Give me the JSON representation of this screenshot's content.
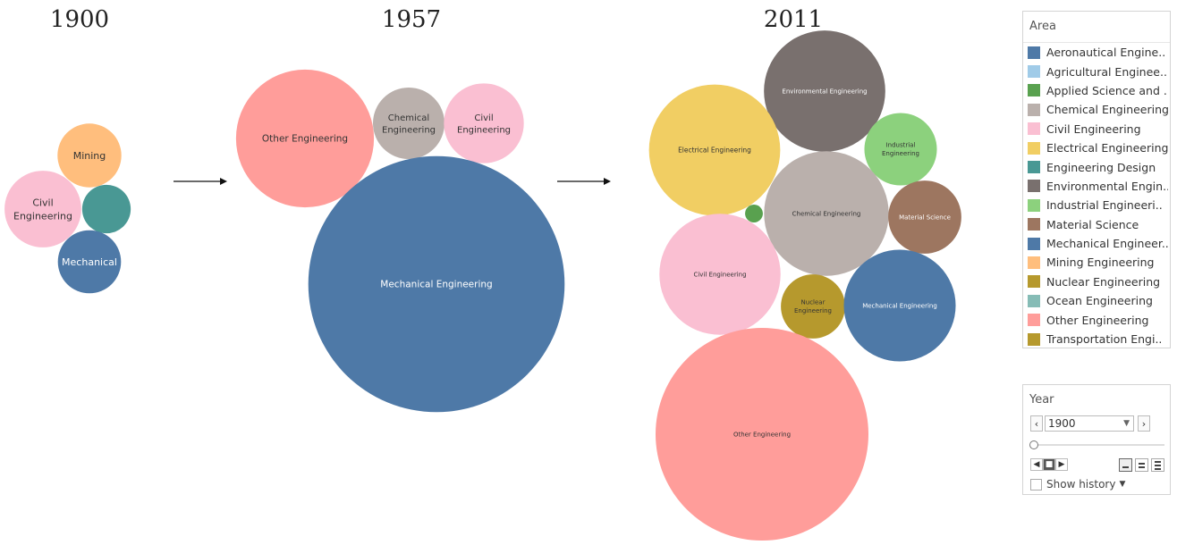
{
  "chart_data": {
    "type": "bubble",
    "frames": [
      {
        "year": "1900",
        "bubbles": [
          {
            "area": "Mining Engineering",
            "label": "Mining",
            "value": 9
          },
          {
            "area": "Civil Engineering",
            "label": "Civil Engineering",
            "value": 13
          },
          {
            "area": "Engineering Design",
            "label": "",
            "value": 5.2
          },
          {
            "area": "Mechanical Engineering",
            "label": "Mechanical",
            "value": 8.8
          }
        ]
      },
      {
        "year": "1957",
        "bubbles": [
          {
            "area": "Other Engineering",
            "label": "Other Engineering",
            "value": 42
          },
          {
            "area": "Chemical Engineering",
            "label": "Chemical Engineering",
            "value": 11.3
          },
          {
            "area": "Civil Engineering",
            "label": "Civil Engineering",
            "value": 14.1
          },
          {
            "area": "Mechanical Engineering",
            "label": "Mechanical Engineering",
            "value": 145
          }
        ]
      },
      {
        "year": "2011",
        "bubbles": [
          {
            "area": "Environmental Engineering",
            "label": "Environmental Engineering",
            "value": 32.5
          },
          {
            "area": "Electrical Engineering",
            "label": "Electrical Engineering",
            "value": 38
          },
          {
            "area": "Industrial Engineering",
            "label": "Industrial Engineering",
            "value": 11.6
          },
          {
            "area": "Chemical Engineering",
            "label": "Chemical Engineering",
            "value": 34.3
          },
          {
            "area": "Material Science",
            "label": "Material Science",
            "value": 11.8
          },
          {
            "area": "Applied Science and Technology",
            "label": "",
            "value": 0.7
          },
          {
            "area": "Civil Engineering",
            "label": "Civil Engineering",
            "value": 32.4
          },
          {
            "area": "Nuclear Engineering",
            "label": "Nuclear Engineering",
            "value": 9.1
          },
          {
            "area": "Mechanical Engineering",
            "label": "Mechanical Engineering",
            "value": 27.6
          },
          {
            "area": "Other Engineering",
            "label": "Other Engineering",
            "value": 100
          }
        ]
      }
    ],
    "legend": {
      "title": "Area",
      "placement": "right",
      "entries": [
        {
          "name": "Aeronautical Engine..",
          "color": "#4e79a7"
        },
        {
          "name": "Agricultural Enginee..",
          "color": "#a0cbe8"
        },
        {
          "name": "Applied Science and ..",
          "color": "#59a14f"
        },
        {
          "name": "Chemical Engineering",
          "color": "#bab0ac"
        },
        {
          "name": "Civil Engineering",
          "color": "#fabfd2"
        },
        {
          "name": "Electrical Engineering",
          "color": "#f1ce63"
        },
        {
          "name": "Engineering Design",
          "color": "#499894"
        },
        {
          "name": "Environmental Engin..",
          "color": "#79706e"
        },
        {
          "name": "Industrial Engineeri..",
          "color": "#8cd17d"
        },
        {
          "name": "Material Science",
          "color": "#9d7660"
        },
        {
          "name": "Mechanical Engineer..",
          "color": "#4e79a7"
        },
        {
          "name": "Mining Engineering",
          "color": "#ffbe7d"
        },
        {
          "name": "Nuclear Engineering",
          "color": "#b6992d"
        },
        {
          "name": "Ocean Engineering",
          "color": "#86bcb6"
        },
        {
          "name": "Other Engineering",
          "color": "#ff9d9a"
        },
        {
          "name": "Transportation Engi..",
          "color": "#b6992d"
        }
      ]
    },
    "colors": {
      "Mining Engineering": "#ffbe7d",
      "Civil Engineering": "#fabfd2",
      "Engineering Design": "#499894",
      "Mechanical Engineering": "#4e79a7",
      "Other Engineering": "#ff9d9a",
      "Chemical Engineering": "#bab0ac",
      "Environmental Engineering": "#79706e",
      "Electrical Engineering": "#f1ce63",
      "Industrial Engineering": "#8cd17d",
      "Material Science": "#9d7660",
      "Applied Science and Technology": "#59a14f",
      "Nuclear Engineering": "#b6992d"
    }
  },
  "year_filter": {
    "title": "Year",
    "selected": "1900",
    "prev_icon": "chevron-left-icon",
    "next_icon": "chevron-right-icon",
    "dropdown_icon": "caret-down-icon",
    "slider_fraction": 0,
    "show_history_label": "Show history"
  }
}
